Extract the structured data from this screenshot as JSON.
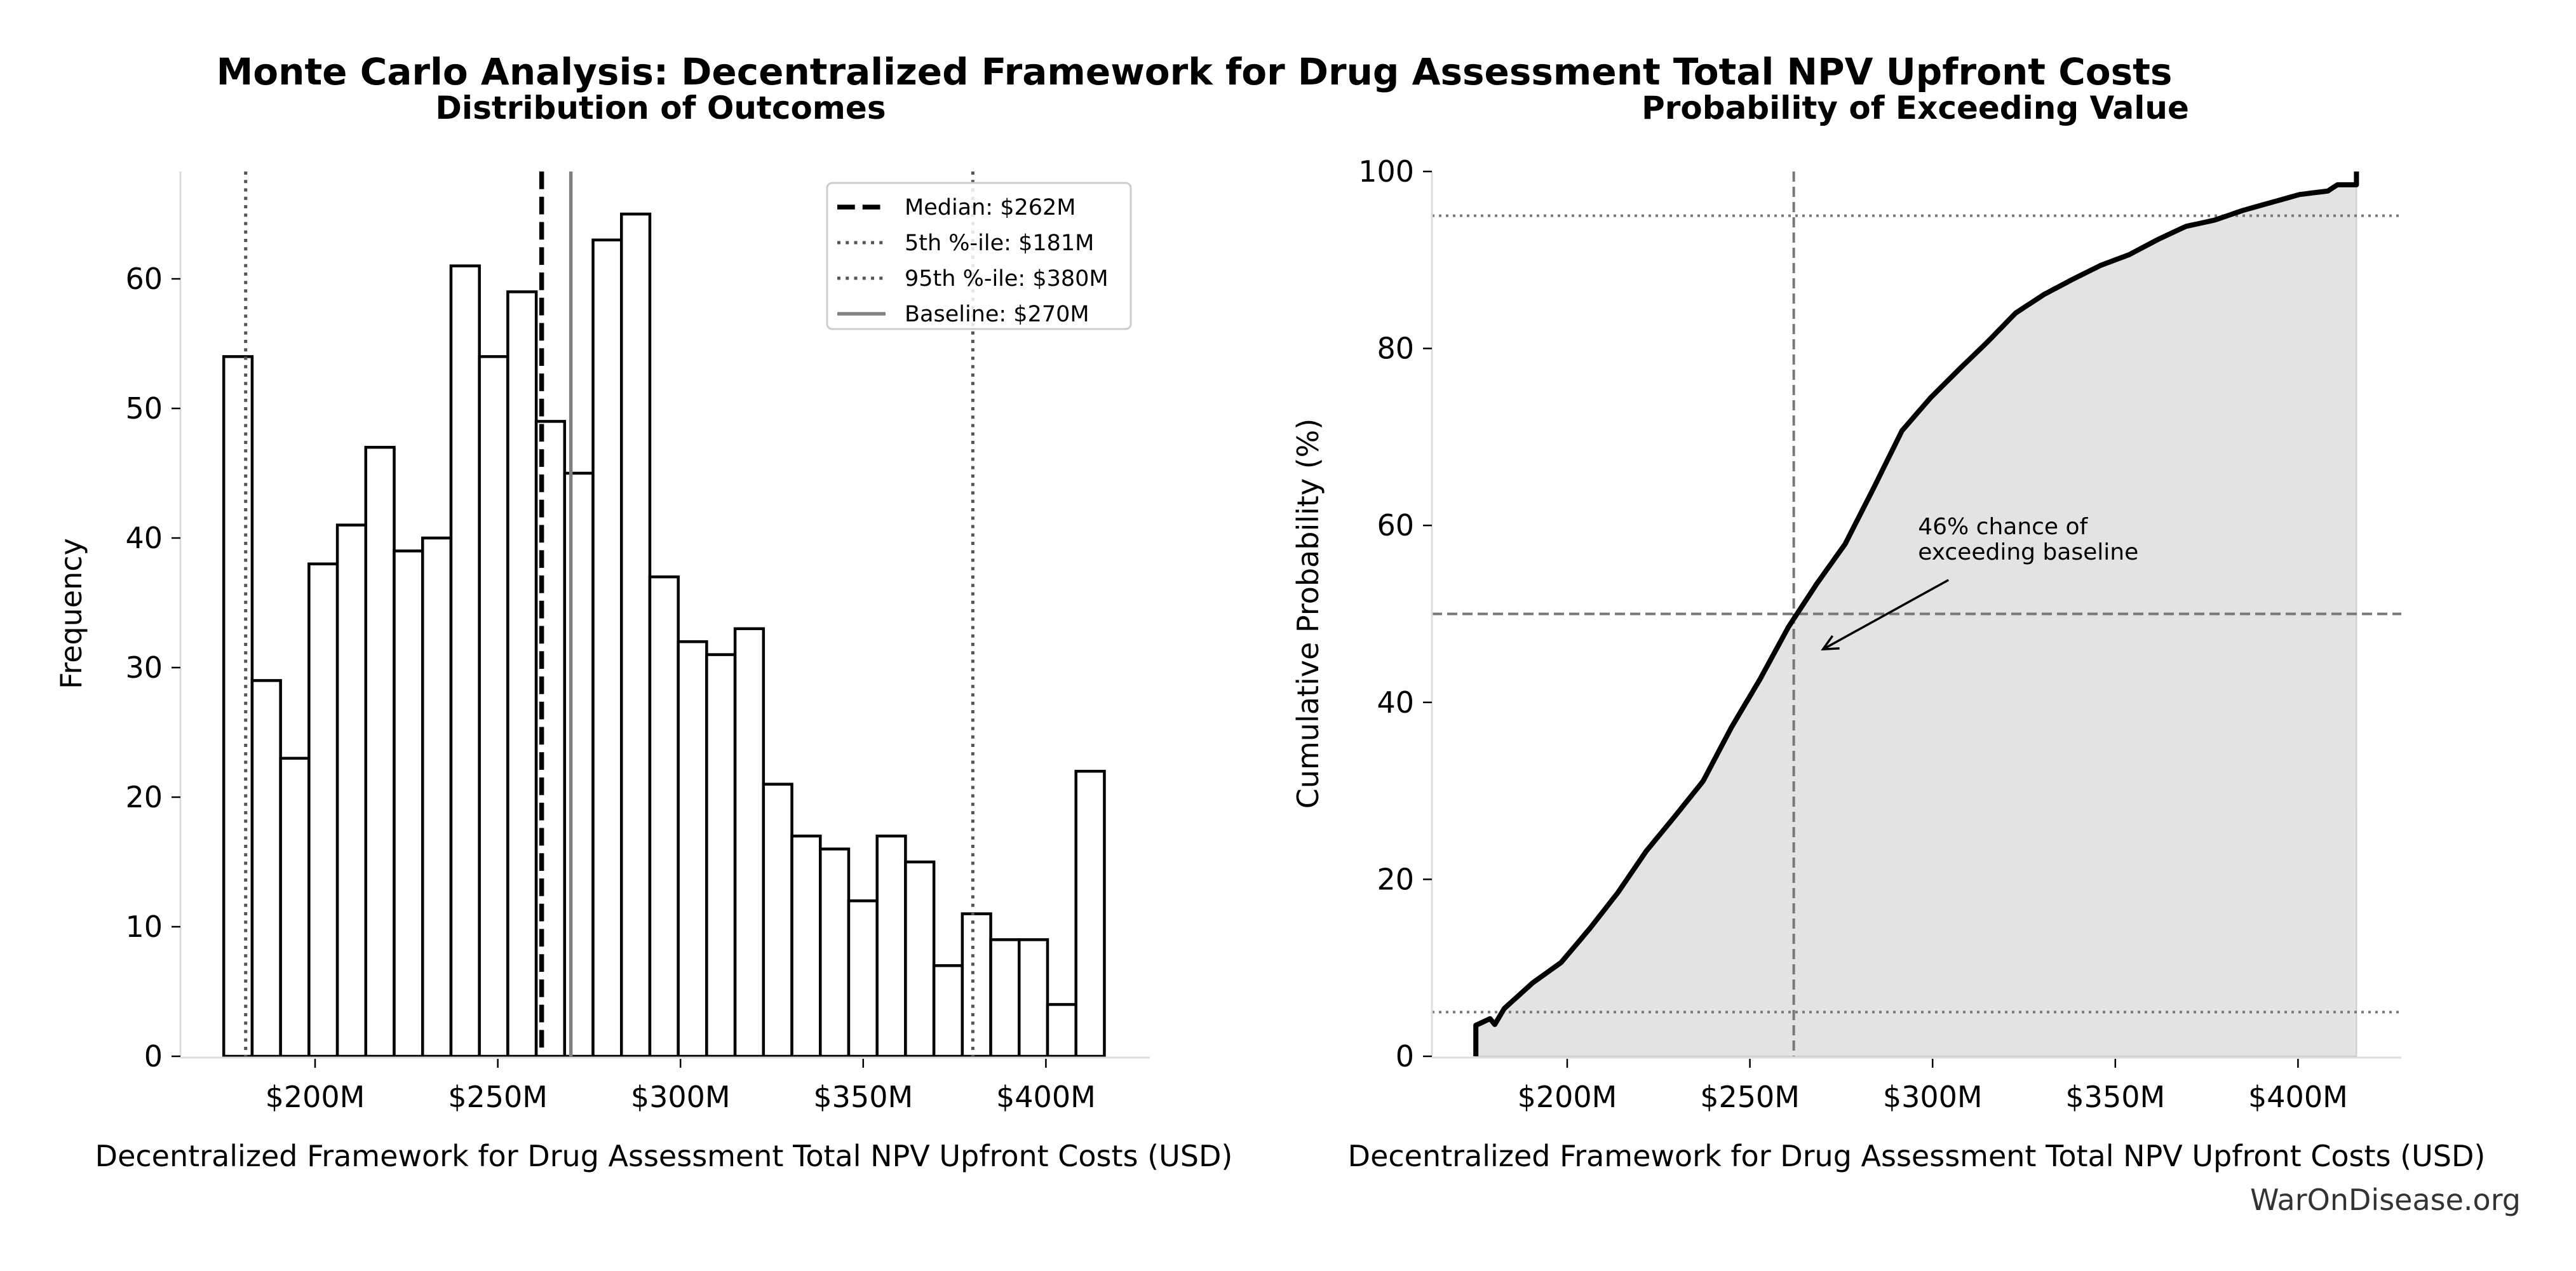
{
  "figure": {
    "title": "Monte Carlo Analysis: Decentralized Framework for Drug Assessment Total NPV Upfront Costs",
    "watermark": "WarOnDisease.org"
  },
  "chart_data": [
    {
      "type": "bar",
      "subtype": "histogram",
      "title": "Distribution of Outcomes",
      "xlabel": "Decentralized Framework for Drug Assessment Total NPV Upfront Costs (USD)",
      "ylabel": "Frequency",
      "x_unit": "USD millions",
      "xlim": [
        163,
        428
      ],
      "ylim": [
        0,
        68
      ],
      "bin_range": [
        175,
        416
      ],
      "values": [
        54,
        29,
        23,
        38,
        41,
        47,
        39,
        40,
        61,
        54,
        59,
        49,
        45,
        63,
        65,
        37,
        32,
        31,
        33,
        21,
        17,
        16,
        12,
        17,
        15,
        7,
        11,
        9,
        9,
        4,
        22
      ],
      "xticks": [
        200,
        250,
        300,
        350,
        400
      ],
      "xtick_labels": [
        "$200M",
        "$250M",
        "$300M",
        "$350M",
        "$400M"
      ],
      "yticks": [
        0,
        10,
        20,
        30,
        40,
        50,
        60
      ],
      "ytick_labels": [
        "0",
        "10",
        "20",
        "30",
        "40",
        "50",
        "60"
      ],
      "grid": false,
      "reference_lines": [
        {
          "name": "median",
          "value": 262,
          "label": "Median: $262M",
          "style": "dashed",
          "color": "#000000"
        },
        {
          "name": "p5",
          "value": 181,
          "label": "5th %-ile: $181M",
          "style": "dotted",
          "color": "#555555"
        },
        {
          "name": "p95",
          "value": 380,
          "label": "95th %-ile: $380M",
          "style": "dotted",
          "color": "#555555"
        },
        {
          "name": "baseline",
          "value": 270,
          "label": "Baseline: $270M",
          "style": "solid",
          "color": "#808080"
        }
      ],
      "legend": {
        "placement": "top-right",
        "entries": [
          "Median: $262M",
          "5th %-ile: $181M",
          "95th %-ile: $380M",
          "Baseline: $270M"
        ]
      }
    },
    {
      "type": "area",
      "subtype": "cumulative",
      "title": "Probability of Exceeding Value",
      "xlabel": "Decentralized Framework for Drug Assessment Total NPV Upfront Costs (USD)",
      "ylabel": "Cumulative Probability (%)",
      "x_unit": "USD millions",
      "xlim": [
        163,
        428
      ],
      "ylim": [
        0,
        100
      ],
      "x_range": [
        175,
        416
      ],
      "start_value": 3.5,
      "end_value": 100,
      "xticks": [
        200,
        250,
        300,
        350,
        400
      ],
      "xtick_labels": [
        "$200M",
        "$250M",
        "$300M",
        "$350M",
        "$400M"
      ],
      "yticks": [
        0,
        20,
        40,
        60,
        80,
        100
      ],
      "ytick_labels": [
        "0",
        "20",
        "40",
        "60",
        "80",
        "100"
      ],
      "grid": false,
      "fill_color": "#e3e3e3",
      "reference_lines": [
        {
          "name": "p50-horizontal",
          "axis": "y",
          "value": 50,
          "style": "dashed"
        },
        {
          "name": "median-vertical",
          "axis": "x",
          "value": 262,
          "style": "dashed"
        },
        {
          "name": "p5-horizontal",
          "axis": "y",
          "value": 5,
          "style": "dotted"
        },
        {
          "name": "p95-horizontal",
          "axis": "y",
          "value": 95,
          "style": "dotted"
        }
      ],
      "annotation": {
        "lines": [
          "46% chance of",
          "exceeding baseline"
        ],
        "text_at": [
          296,
          59
        ],
        "arrow_to": [
          270,
          46
        ]
      }
    }
  ]
}
